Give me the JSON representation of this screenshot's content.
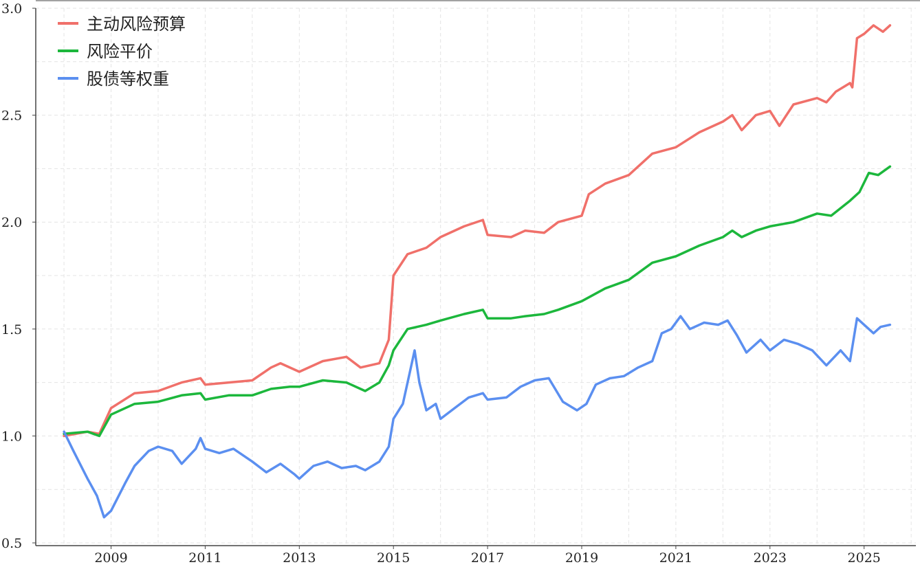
{
  "chart_data": {
    "type": "line",
    "title": "",
    "xlabel": "",
    "ylabel": "",
    "xlim": [
      2007.4,
      2026.1
    ],
    "ylim": [
      0.5,
      3.0
    ],
    "grid": true,
    "legend_position": "top-left",
    "x_ticks": [
      2009,
      2011,
      2013,
      2015,
      2017,
      2019,
      2021,
      2023,
      2025
    ],
    "x_tick_labels": [
      "2009",
      "2011",
      "2013",
      "2015",
      "2017",
      "2019",
      "2021",
      "2023",
      "2025"
    ],
    "y_ticks": [
      0.5,
      1.0,
      1.5,
      2.0,
      2.5,
      3.0
    ],
    "y_tick_labels": [
      "0.5",
      "1.0",
      "1.5",
      "2.0",
      "2.5",
      "3.0"
    ],
    "series": [
      {
        "name": "主动风险预算",
        "color": "#f0706a",
        "points": [
          [
            2008.0,
            1.0
          ],
          [
            2008.5,
            1.02
          ],
          [
            2008.75,
            1.01
          ],
          [
            2009.0,
            1.13
          ],
          [
            2009.5,
            1.2
          ],
          [
            2010.0,
            1.21
          ],
          [
            2010.5,
            1.25
          ],
          [
            2010.9,
            1.27
          ],
          [
            2011.0,
            1.24
          ],
          [
            2011.5,
            1.25
          ],
          [
            2012.0,
            1.26
          ],
          [
            2012.4,
            1.32
          ],
          [
            2012.6,
            1.34
          ],
          [
            2013.0,
            1.3
          ],
          [
            2013.5,
            1.35
          ],
          [
            2014.0,
            1.37
          ],
          [
            2014.3,
            1.32
          ],
          [
            2014.7,
            1.34
          ],
          [
            2014.9,
            1.45
          ],
          [
            2015.0,
            1.75
          ],
          [
            2015.3,
            1.85
          ],
          [
            2015.7,
            1.88
          ],
          [
            2016.0,
            1.93
          ],
          [
            2016.5,
            1.98
          ],
          [
            2016.9,
            2.01
          ],
          [
            2017.0,
            1.94
          ],
          [
            2017.5,
            1.93
          ],
          [
            2017.8,
            1.96
          ],
          [
            2018.2,
            1.95
          ],
          [
            2018.5,
            2.0
          ],
          [
            2019.0,
            2.03
          ],
          [
            2019.15,
            2.13
          ],
          [
            2019.5,
            2.18
          ],
          [
            2020.0,
            2.22
          ],
          [
            2020.5,
            2.32
          ],
          [
            2021.0,
            2.35
          ],
          [
            2021.5,
            2.42
          ],
          [
            2022.0,
            2.47
          ],
          [
            2022.2,
            2.5
          ],
          [
            2022.4,
            2.43
          ],
          [
            2022.7,
            2.5
          ],
          [
            2023.0,
            2.52
          ],
          [
            2023.2,
            2.45
          ],
          [
            2023.5,
            2.55
          ],
          [
            2024.0,
            2.58
          ],
          [
            2024.2,
            2.56
          ],
          [
            2024.4,
            2.61
          ],
          [
            2024.7,
            2.65
          ],
          [
            2024.75,
            2.63
          ],
          [
            2024.85,
            2.86
          ],
          [
            2025.0,
            2.88
          ],
          [
            2025.2,
            2.92
          ],
          [
            2025.4,
            2.89
          ],
          [
            2025.55,
            2.92
          ]
        ]
      },
      {
        "name": "风险平价",
        "color": "#1cb73c",
        "points": [
          [
            2008.0,
            1.01
          ],
          [
            2008.5,
            1.02
          ],
          [
            2008.75,
            1.0
          ],
          [
            2009.0,
            1.1
          ],
          [
            2009.5,
            1.15
          ],
          [
            2010.0,
            1.16
          ],
          [
            2010.5,
            1.19
          ],
          [
            2010.9,
            1.2
          ],
          [
            2011.0,
            1.17
          ],
          [
            2011.5,
            1.19
          ],
          [
            2012.0,
            1.19
          ],
          [
            2012.4,
            1.22
          ],
          [
            2012.8,
            1.23
          ],
          [
            2013.0,
            1.23
          ],
          [
            2013.5,
            1.26
          ],
          [
            2014.0,
            1.25
          ],
          [
            2014.4,
            1.21
          ],
          [
            2014.7,
            1.25
          ],
          [
            2014.9,
            1.33
          ],
          [
            2015.0,
            1.4
          ],
          [
            2015.3,
            1.5
          ],
          [
            2015.7,
            1.52
          ],
          [
            2016.0,
            1.54
          ],
          [
            2016.5,
            1.57
          ],
          [
            2016.9,
            1.59
          ],
          [
            2017.0,
            1.55
          ],
          [
            2017.5,
            1.55
          ],
          [
            2017.8,
            1.56
          ],
          [
            2018.2,
            1.57
          ],
          [
            2018.5,
            1.59
          ],
          [
            2019.0,
            1.63
          ],
          [
            2019.5,
            1.69
          ],
          [
            2020.0,
            1.73
          ],
          [
            2020.5,
            1.81
          ],
          [
            2021.0,
            1.84
          ],
          [
            2021.5,
            1.89
          ],
          [
            2022.0,
            1.93
          ],
          [
            2022.2,
            1.96
          ],
          [
            2022.4,
            1.93
          ],
          [
            2022.7,
            1.96
          ],
          [
            2023.0,
            1.98
          ],
          [
            2023.5,
            2.0
          ],
          [
            2024.0,
            2.04
          ],
          [
            2024.3,
            2.03
          ],
          [
            2024.7,
            2.1
          ],
          [
            2024.9,
            2.14
          ],
          [
            2025.1,
            2.23
          ],
          [
            2025.3,
            2.22
          ],
          [
            2025.55,
            2.26
          ]
        ]
      },
      {
        "name": "股债等权重",
        "color": "#5b8ff0",
        "points": [
          [
            2008.0,
            1.02
          ],
          [
            2008.2,
            0.93
          ],
          [
            2008.5,
            0.8
          ],
          [
            2008.7,
            0.72
          ],
          [
            2008.85,
            0.62
          ],
          [
            2009.0,
            0.65
          ],
          [
            2009.3,
            0.78
          ],
          [
            2009.5,
            0.86
          ],
          [
            2009.8,
            0.93
          ],
          [
            2010.0,
            0.95
          ],
          [
            2010.3,
            0.93
          ],
          [
            2010.5,
            0.87
          ],
          [
            2010.8,
            0.94
          ],
          [
            2010.9,
            0.99
          ],
          [
            2011.0,
            0.94
          ],
          [
            2011.3,
            0.92
          ],
          [
            2011.6,
            0.94
          ],
          [
            2012.0,
            0.88
          ],
          [
            2012.3,
            0.83
          ],
          [
            2012.6,
            0.87
          ],
          [
            2012.9,
            0.82
          ],
          [
            2013.0,
            0.8
          ],
          [
            2013.3,
            0.86
          ],
          [
            2013.6,
            0.88
          ],
          [
            2013.9,
            0.85
          ],
          [
            2014.2,
            0.86
          ],
          [
            2014.4,
            0.84
          ],
          [
            2014.7,
            0.88
          ],
          [
            2014.9,
            0.95
          ],
          [
            2015.0,
            1.08
          ],
          [
            2015.2,
            1.15
          ],
          [
            2015.35,
            1.3
          ],
          [
            2015.45,
            1.4
          ],
          [
            2015.55,
            1.25
          ],
          [
            2015.7,
            1.12
          ],
          [
            2015.9,
            1.15
          ],
          [
            2016.0,
            1.08
          ],
          [
            2016.3,
            1.13
          ],
          [
            2016.6,
            1.18
          ],
          [
            2016.9,
            1.2
          ],
          [
            2017.0,
            1.17
          ],
          [
            2017.4,
            1.18
          ],
          [
            2017.7,
            1.23
          ],
          [
            2018.0,
            1.26
          ],
          [
            2018.3,
            1.27
          ],
          [
            2018.6,
            1.16
          ],
          [
            2018.9,
            1.12
          ],
          [
            2019.1,
            1.15
          ],
          [
            2019.3,
            1.24
          ],
          [
            2019.6,
            1.27
          ],
          [
            2019.9,
            1.28
          ],
          [
            2020.2,
            1.32
          ],
          [
            2020.5,
            1.35
          ],
          [
            2020.7,
            1.48
          ],
          [
            2020.9,
            1.5
          ],
          [
            2021.1,
            1.56
          ],
          [
            2021.3,
            1.5
          ],
          [
            2021.6,
            1.53
          ],
          [
            2021.9,
            1.52
          ],
          [
            2022.1,
            1.54
          ],
          [
            2022.3,
            1.47
          ],
          [
            2022.5,
            1.39
          ],
          [
            2022.8,
            1.45
          ],
          [
            2023.0,
            1.4
          ],
          [
            2023.3,
            1.45
          ],
          [
            2023.6,
            1.43
          ],
          [
            2023.9,
            1.4
          ],
          [
            2024.2,
            1.33
          ],
          [
            2024.5,
            1.4
          ],
          [
            2024.7,
            1.35
          ],
          [
            2024.85,
            1.55
          ],
          [
            2025.0,
            1.52
          ],
          [
            2025.2,
            1.48
          ],
          [
            2025.35,
            1.51
          ],
          [
            2025.55,
            1.52
          ]
        ]
      }
    ]
  }
}
